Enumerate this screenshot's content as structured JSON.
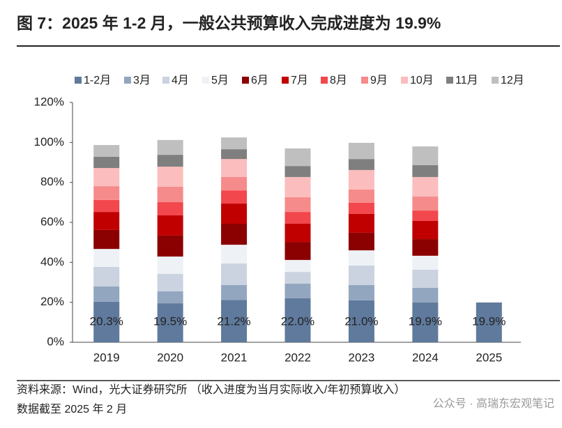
{
  "chart_data": {
    "type": "stacked_bar",
    "title": "图 7：2025 年 1-2 月，一般公共预算收入完成进度为 19.9%",
    "categories": [
      "2019",
      "2020",
      "2021",
      "2022",
      "2023",
      "2024",
      "2025"
    ],
    "series": [
      {
        "name": "1-2月",
        "color": "#5f7a9c",
        "values": [
          20.3,
          19.5,
          21.2,
          22.0,
          21.0,
          19.9,
          19.9
        ],
        "value_labels": [
          "20.3%",
          "19.5%",
          "21.2%",
          "22.0%",
          "21.0%",
          "19.9%",
          "19.9%"
        ]
      },
      {
        "name": "3月",
        "color": "#93a6bf",
        "values": [
          7.6,
          6.0,
          7.4,
          7.3,
          7.6,
          7.3,
          null
        ]
      },
      {
        "name": "4月",
        "color": "#cad3df",
        "values": [
          9.8,
          8.7,
          10.8,
          5.9,
          9.8,
          9.1,
          null
        ]
      },
      {
        "name": "5月",
        "color": "#eef1f5",
        "values": [
          9.0,
          8.7,
          9.4,
          6.0,
          7.6,
          7.0,
          null
        ]
      },
      {
        "name": "6月",
        "color": "#8b0000",
        "values": [
          9.5,
          10.5,
          10.5,
          9.0,
          8.8,
          8.3,
          null
        ]
      },
      {
        "name": "7月",
        "color": "#c00000",
        "values": [
          9.0,
          10.1,
          10.1,
          9.1,
          9.4,
          9.1,
          null
        ]
      },
      {
        "name": "8月",
        "color": "#f2474c",
        "values": [
          6.0,
          6.6,
          6.6,
          5.9,
          5.6,
          5.2,
          null
        ]
      },
      {
        "name": "9月",
        "color": "#f68b8b",
        "values": [
          6.9,
          7.7,
          6.7,
          7.4,
          6.6,
          7.0,
          null
        ]
      },
      {
        "name": "10月",
        "color": "#fbbdbd",
        "values": [
          9.1,
          10.1,
          9.0,
          10.1,
          9.8,
          9.8,
          null
        ]
      },
      {
        "name": "11月",
        "color": "#7f7f7f",
        "values": [
          5.6,
          5.9,
          4.9,
          5.5,
          5.5,
          5.9,
          null
        ]
      },
      {
        "name": "12月",
        "color": "#bfbfbf",
        "values": [
          5.9,
          7.4,
          5.9,
          8.8,
          8.1,
          9.4,
          null
        ]
      }
    ],
    "ylim": [
      0,
      120
    ],
    "yticks": [
      {
        "value": 0,
        "label": "0%"
      },
      {
        "value": 20,
        "label": "20%"
      },
      {
        "value": 40,
        "label": "40%"
      },
      {
        "value": 60,
        "label": "60%"
      },
      {
        "value": 80,
        "label": "80%"
      },
      {
        "value": 100,
        "label": "100%"
      },
      {
        "value": 120,
        "label": "120%"
      }
    ],
    "source": "资料来源：Wind，光大证券研究所 （收入进度为当月实际收入/年初预算收入）",
    "note": "数据截至 2025 年 2 月",
    "watermark": "公众号 · 高瑞东宏观笔记"
  }
}
